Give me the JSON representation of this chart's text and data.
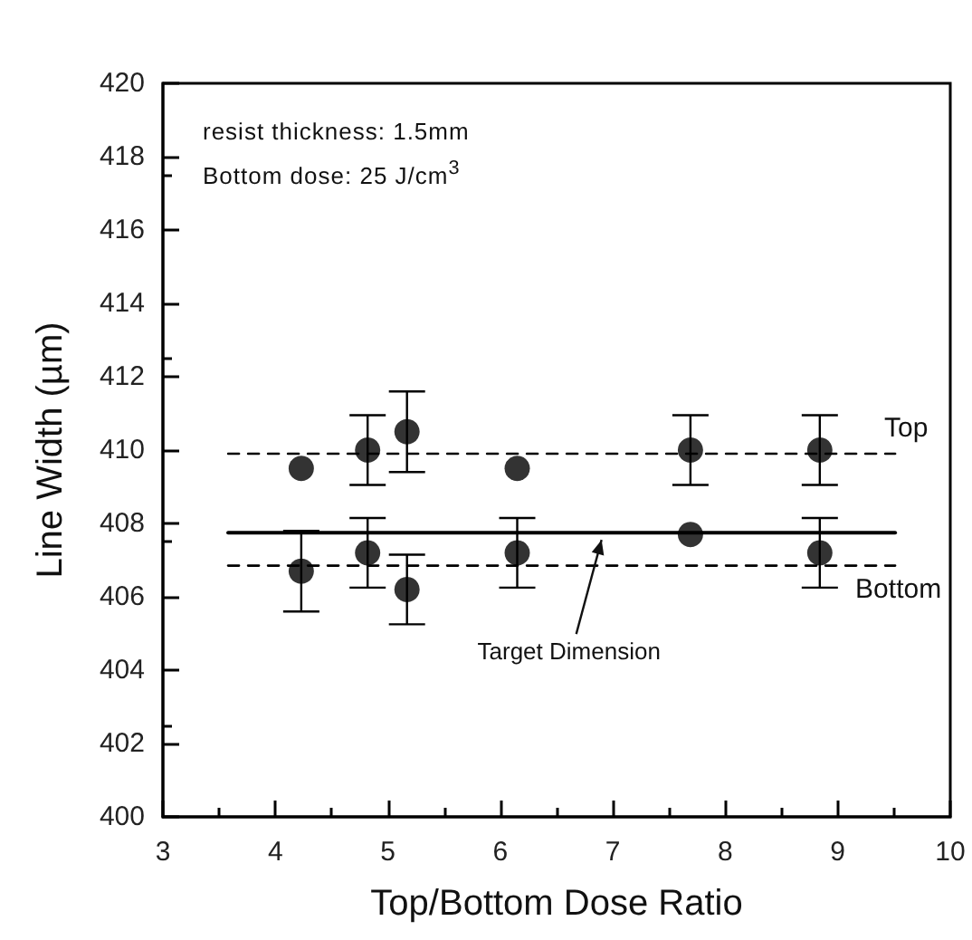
{
  "chart_data": {
    "type": "scatter",
    "xlabel": "Top/Bottom Dose Ratio",
    "ylabel": "Line Width (µm)",
    "xlim": [
      3,
      10
    ],
    "xticks": [
      3,
      4,
      5,
      6,
      7,
      8,
      9,
      10
    ],
    "ylim": [
      400,
      420
    ],
    "yticks": [
      400,
      402,
      404,
      406,
      408,
      410,
      412,
      414,
      416,
      418,
      420
    ],
    "grid": false,
    "marker": "circle",
    "annotations": [
      "resist thickness: 1.5mm",
      "Bottom dose: 25 J/cm$^{3}$",
      {
        "text": "Target Dimension",
        "x": 6.9,
        "y": 407.75
      }
    ],
    "series": [
      {
        "color": "#000000",
        "x": [
          4.23,
          4.82,
          5.17,
          6.15,
          7.69,
          8.84
        ],
        "values": [
          409.5,
          410.0,
          410.5,
          409.5,
          410.0,
          410.0
        ],
        "errors": [
          null,
          0.95,
          1.1,
          null,
          0.95,
          0.95
        ]
      },
      {
        "color": "#000000",
        "x": [
          4.23,
          4.82,
          5.17,
          6.15,
          7.69,
          8.84
        ],
        "values": [
          406.7,
          407.2,
          406.2,
          407.2,
          407.7,
          407.2
        ],
        "errors": [
          1.1,
          0.95,
          0.95,
          0.95,
          null,
          0.95
        ]
      },
      {
        "type": "line",
        "name": "Top",
        "color": "#000000",
        "marker": "none",
        "line_style": "dashed",
        "x": [
          3.58,
          9.51
        ],
        "values": [
          409.9,
          409.9
        ]
      },
      {
        "type": "line",
        "name": "Bottom",
        "color": "#000000",
        "marker": "none",
        "line_style": "dashed",
        "x": [
          3.58,
          9.51
        ],
        "values": [
          406.85,
          406.85
        ]
      },
      {
        "type": "line",
        "color": "#000000",
        "marker": "none",
        "line_style": "solid",
        "x": [
          3.58,
          9.51
        ],
        "values": [
          407.75,
          407.75
        ]
      }
    ]
  }
}
